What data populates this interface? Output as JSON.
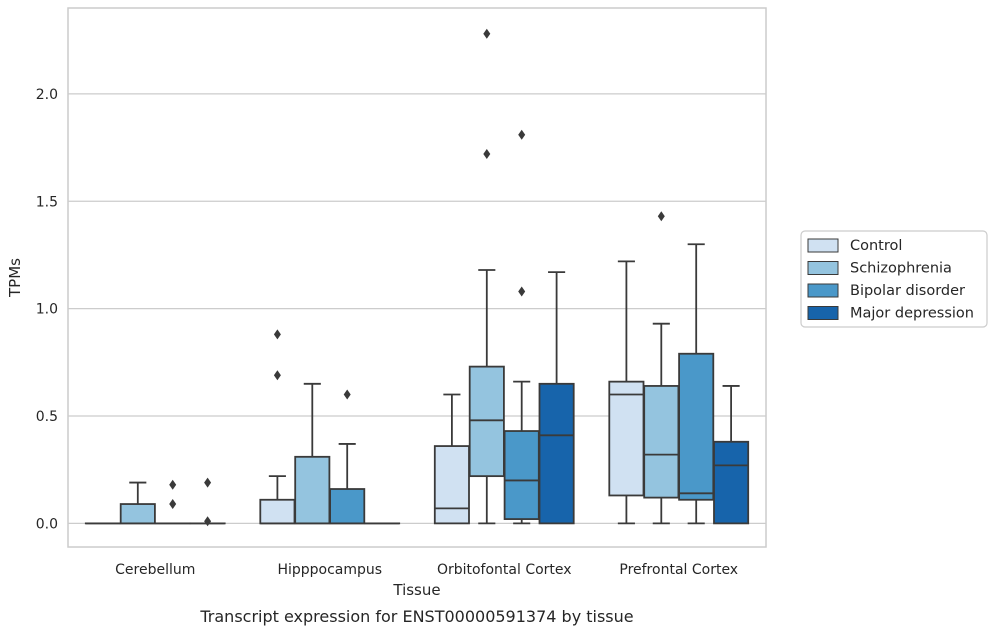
{
  "chart_data": {
    "type": "boxplot",
    "caption": "Transcript expression for ENST00000591374 by tissue",
    "xlabel": "Tissue",
    "ylabel": "TPMs",
    "ylim": [
      -0.11,
      2.4
    ],
    "yticks": [
      "0.0",
      "0.5",
      "1.0",
      "1.5",
      "2.0"
    ],
    "grid": "horizontal",
    "legend_position": "right",
    "categories": [
      "Cerebellum",
      "Hipppocampus",
      "Orbitofontal Cortex",
      "Prefrontal Cortex"
    ],
    "series": [
      {
        "name": "Control",
        "color": "#d0e1f2",
        "boxes": [
          {
            "min": 0.0,
            "q1": 0.0,
            "median": 0.0,
            "q3": 0.0,
            "max": 0.0,
            "outliers": []
          },
          {
            "min": 0.0,
            "q1": 0.0,
            "median": 0.0,
            "q3": 0.11,
            "max": 0.22,
            "outliers": [
              0.69,
              0.88
            ]
          },
          {
            "min": 0.0,
            "q1": 0.0,
            "median": 0.07,
            "q3": 0.36,
            "max": 0.6,
            "outliers": []
          },
          {
            "min": 0.0,
            "q1": 0.13,
            "median": 0.6,
            "q3": 0.66,
            "max": 1.22,
            "outliers": []
          }
        ]
      },
      {
        "name": "Schizophrenia",
        "color": "#94c4df",
        "boxes": [
          {
            "min": 0.0,
            "q1": 0.0,
            "median": 0.0,
            "q3": 0.09,
            "max": 0.19,
            "outliers": []
          },
          {
            "min": 0.0,
            "q1": 0.0,
            "median": 0.0,
            "q3": 0.31,
            "max": 0.65,
            "outliers": []
          },
          {
            "min": 0.0,
            "q1": 0.22,
            "median": 0.48,
            "q3": 0.73,
            "max": 1.18,
            "outliers": [
              1.72,
              2.28
            ]
          },
          {
            "min": 0.0,
            "q1": 0.12,
            "median": 0.32,
            "q3": 0.64,
            "max": 0.93,
            "outliers": [
              1.43
            ]
          }
        ]
      },
      {
        "name": "Bipolar disorder",
        "color": "#4a98c9",
        "boxes": [
          {
            "min": 0.0,
            "q1": 0.0,
            "median": 0.0,
            "q3": 0.0,
            "max": 0.0,
            "outliers": [
              0.09,
              0.18
            ]
          },
          {
            "min": 0.0,
            "q1": 0.0,
            "median": 0.0,
            "q3": 0.16,
            "max": 0.37,
            "outliers": [
              0.6
            ]
          },
          {
            "min": 0.0,
            "q1": 0.02,
            "median": 0.2,
            "q3": 0.43,
            "max": 0.66,
            "outliers": [
              1.08,
              1.81
            ]
          },
          {
            "min": 0.0,
            "q1": 0.11,
            "median": 0.14,
            "q3": 0.79,
            "max": 1.3,
            "outliers": []
          }
        ]
      },
      {
        "name": "Major depression",
        "color": "#1764ab",
        "boxes": [
          {
            "min": 0.0,
            "q1": 0.0,
            "median": 0.0,
            "q3": 0.0,
            "max": 0.0,
            "outliers": [
              0.01,
              0.19
            ]
          },
          {
            "min": 0.0,
            "q1": 0.0,
            "median": 0.0,
            "q3": 0.0,
            "max": 0.0,
            "outliers": []
          },
          {
            "min": 0.0,
            "q1": 0.0,
            "median": 0.41,
            "q3": 0.65,
            "max": 1.17,
            "outliers": []
          },
          {
            "min": 0.0,
            "q1": 0.0,
            "median": 0.27,
            "q3": 0.38,
            "max": 0.64,
            "outliers": []
          }
        ]
      }
    ]
  }
}
